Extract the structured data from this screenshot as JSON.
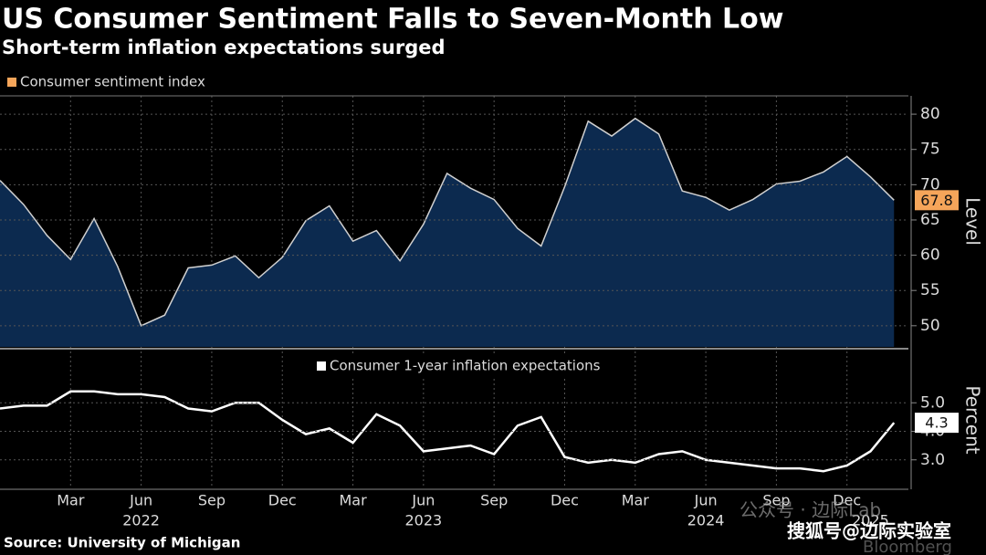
{
  "header": {
    "title": "US Consumer Sentiment Falls to Seven-Month Low",
    "subtitle": "Short-term inflation expectations surged",
    "source": "Source: University of Michigan",
    "watermarks": [
      "公众号 · 边际Lab",
      "搜狐号@边际实验室",
      "Bloomberg"
    ]
  },
  "chart_data": [
    {
      "type": "area",
      "series": [
        {
          "name": "Consumer sentiment index",
          "color": "#0c2a4f",
          "line_color": "#d0d0d0",
          "legend_color": "#f5a55a",
          "values": [
            70.6,
            67.2,
            62.8,
            59.4,
            65.2,
            58.4,
            50.0,
            51.5,
            58.2,
            58.6,
            59.9,
            56.8,
            59.7,
            64.9,
            67.0,
            62.0,
            63.5,
            59.2,
            64.4,
            71.6,
            69.5,
            67.9,
            63.8,
            61.3,
            69.7,
            79.0,
            76.9,
            79.4,
            77.2,
            69.1,
            68.2,
            66.4,
            67.9,
            70.1,
            70.5,
            71.8,
            74.0,
            71.1,
            67.8
          ]
        }
      ],
      "categories": [
        null,
        null,
        null,
        "Mar",
        null,
        null,
        "Jun",
        null,
        null,
        "Sep",
        null,
        null,
        "Dec",
        null,
        null,
        "Mar",
        null,
        null,
        "Jun",
        null,
        null,
        "Sep",
        null,
        null,
        "Dec",
        null,
        null,
        "Mar",
        null,
        null,
        "Jun",
        null,
        null,
        "Sep",
        null,
        null,
        "Dec",
        null,
        null
      ],
      "category_years": [
        null,
        null,
        null,
        null,
        null,
        null,
        "2022",
        null,
        null,
        null,
        null,
        null,
        null,
        null,
        null,
        null,
        null,
        null,
        "2023",
        null,
        null,
        null,
        null,
        null,
        null,
        null,
        null,
        null,
        null,
        null,
        "2024",
        null,
        null,
        null,
        null,
        null,
        null,
        "2025",
        null
      ],
      "ylabel": "Level",
      "ylim": [
        47,
        82.6
      ],
      "yticks": [
        50,
        55,
        60,
        65,
        70,
        75,
        80
      ],
      "grid": true
    },
    {
      "type": "line",
      "series": [
        {
          "name": "Consumer 1-year inflation expectations",
          "color": "#ffffff",
          "values": [
            4.8,
            4.9,
            4.9,
            5.4,
            5.4,
            5.3,
            5.3,
            5.2,
            4.8,
            4.7,
            5.0,
            5.0,
            4.4,
            3.9,
            4.1,
            3.6,
            4.6,
            4.2,
            3.3,
            3.4,
            3.5,
            3.2,
            4.2,
            4.5,
            3.1,
            2.9,
            3.0,
            2.9,
            3.2,
            3.3,
            3.0,
            2.9,
            2.8,
            2.7,
            2.7,
            2.6,
            2.8,
            3.3,
            4.3
          ]
        }
      ],
      "ylabel": "Percent",
      "ylim": [
        2.0,
        6.8
      ],
      "yticks": [
        {
          "value": 3,
          "label": "3.0"
        },
        {
          "value": 4,
          "label": "4.0"
        },
        {
          "value": 5,
          "label": "5.0"
        }
      ],
      "grid": true
    }
  ]
}
